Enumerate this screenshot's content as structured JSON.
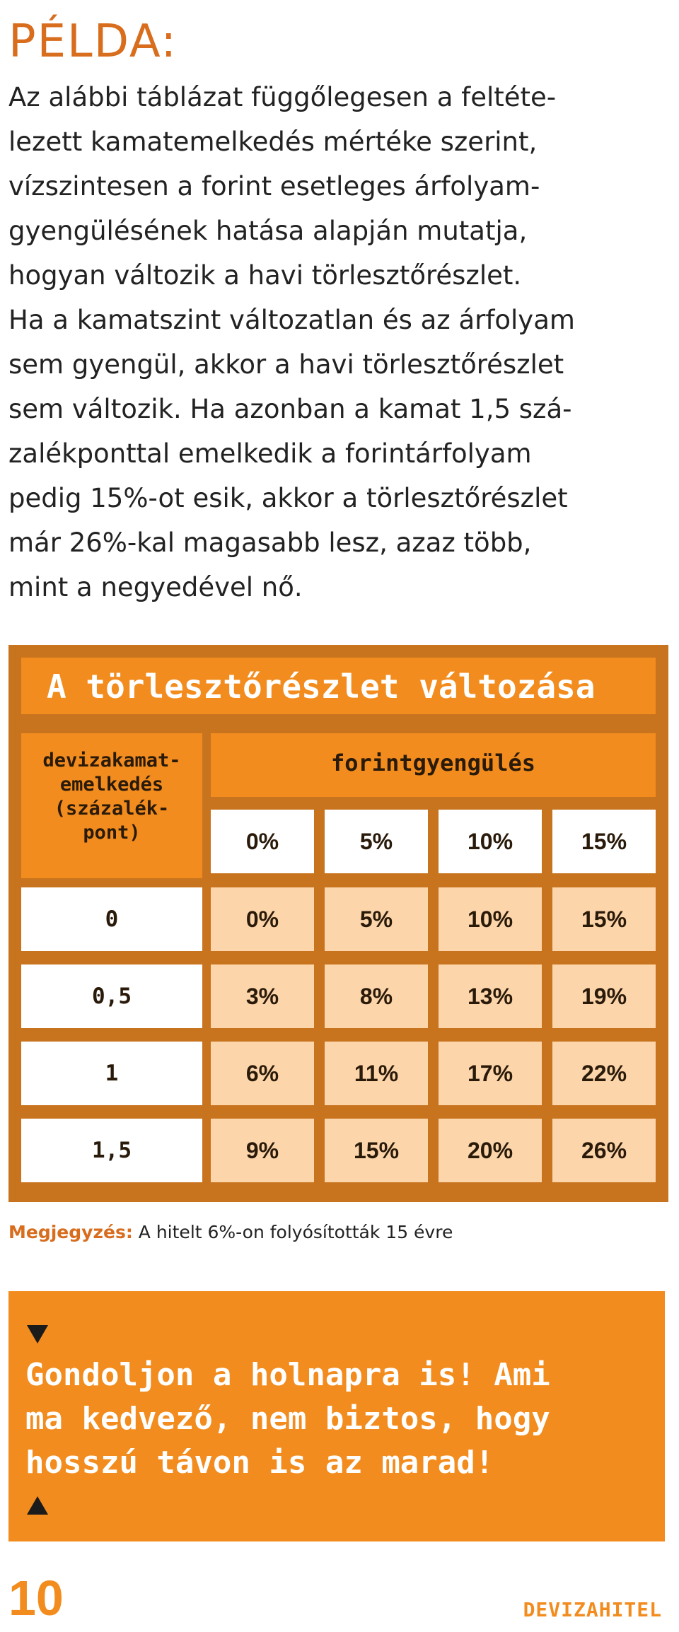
{
  "heading": "PÉLDA:",
  "intro_lines": [
    "Az alábbi táblázat függőlegesen a feltéte-",
    "lezett kamatemelkedés mértéke szerint,",
    "vízszintesen a forint esetleges árfolyam-",
    "gyengülésének hatása alapján mutatja,",
    "hogyan változik a havi törlesztőrészlet.",
    "Ha a kamatszint változatlan és az árfolyam",
    "sem gyengül, akkor a havi törlesztőrészlet",
    "sem változik. Ha azonban a kamat 1,5 szá-",
    "zalékponttal emelkedik a forintárfolyam",
    "pedig 15%-ot esik, akkor a törlesztőrészlet",
    "már 26%-kal magasabb lesz, azaz több,",
    "mint a negyedével nő."
  ],
  "table": {
    "title": "A törlesztőrészlet változása",
    "row_header_lines": [
      "devizakamat-",
      "emelkedés",
      "(százalék-",
      "pont)"
    ],
    "column_header": "forintgyengülés",
    "columns": [
      "0%",
      "5%",
      "10%",
      "15%"
    ],
    "rows": [
      {
        "label": "0",
        "values": [
          "0%",
          "5%",
          "10%",
          "15%"
        ]
      },
      {
        "label": "0,5",
        "values": [
          "3%",
          "8%",
          "13%",
          "19%"
        ]
      },
      {
        "label": "1",
        "values": [
          "6%",
          "11%",
          "17%",
          "22%"
        ]
      },
      {
        "label": "1,5",
        "values": [
          "9%",
          "15%",
          "20%",
          "26%"
        ]
      }
    ]
  },
  "note": {
    "label": "Megjegyzés:",
    "text": " A hitelt 6%-on folyósították 15 évre"
  },
  "callout": {
    "lines": [
      "Gondoljon a holnapra is! Ami",
      "ma kedvező, nem biztos, hogy",
      "hosszú távon is az marad!"
    ]
  },
  "footer": {
    "page_number": "10",
    "title": "DEVIZAHITEL"
  },
  "colors": {
    "orange": "#f28c1e",
    "dark_orange": "#c8741f",
    "heading_orange": "#d86d1e",
    "peach": "#fcd5aa"
  }
}
